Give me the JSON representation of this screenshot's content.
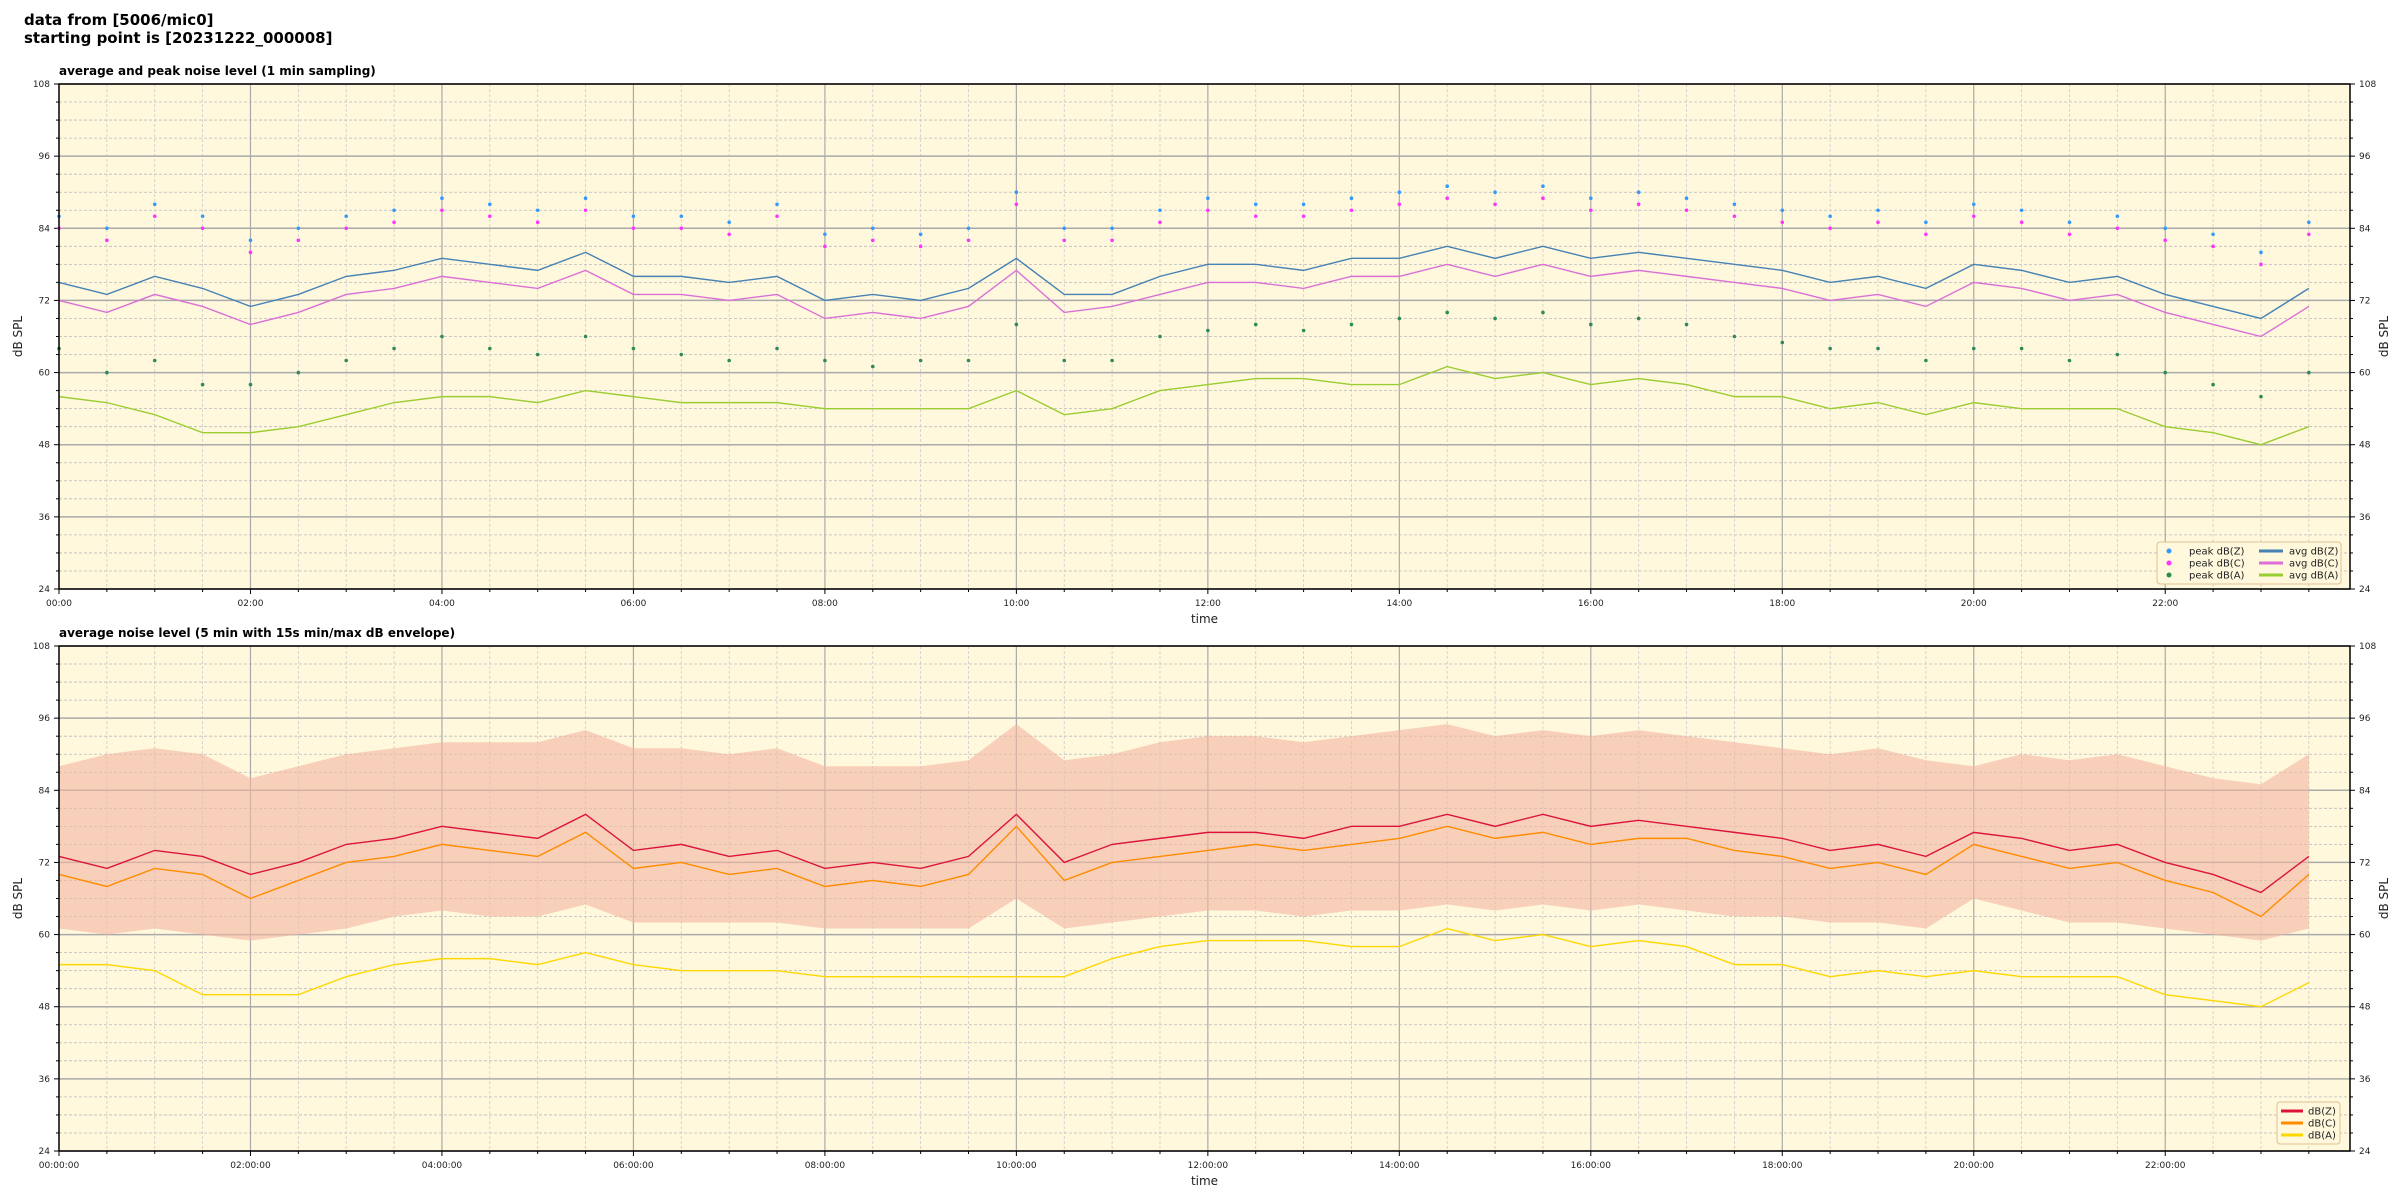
{
  "header": {
    "line1": "data from [5006/mic0]",
    "line2": "starting point is [20231222_000008]"
  },
  "chart_data": [
    {
      "type": "line",
      "title": "average and peak noise level (1 min sampling)",
      "xlabel": "time",
      "ylabel": "dB SPL",
      "xlim_hours": [
        0,
        23.93
      ],
      "ylim": [
        24,
        108
      ],
      "yticks": [
        "24",
        "36",
        "48",
        "60",
        "72",
        "84",
        "96",
        "108"
      ],
      "xticks": [
        "00:00",
        "02:00",
        "04:00",
        "06:00",
        "08:00",
        "10:00",
        "12:00",
        "14:00",
        "16:00",
        "18:00",
        "20:00",
        "22:00"
      ],
      "grid": true,
      "background": "#fff8dc",
      "legend_placement": "lower-right",
      "x_hours": [
        0,
        0.5,
        1,
        1.5,
        2,
        2.5,
        3,
        3.5,
        4,
        4.5,
        5,
        5.5,
        6,
        6.5,
        7,
        7.5,
        8,
        8.5,
        9,
        9.5,
        10,
        10.5,
        11,
        11.5,
        12,
        12.5,
        13,
        13.5,
        14,
        14.5,
        15,
        15.5,
        16,
        16.5,
        17,
        17.5,
        18,
        18.5,
        19,
        19.5,
        20,
        20.5,
        21,
        21.5,
        22,
        22.5,
        23,
        23.5
      ],
      "series": [
        {
          "name": "peak dB(Z)",
          "kind": "scatter",
          "color": "#3399ff",
          "values": [
            86,
            84,
            88,
            86,
            82,
            84,
            86,
            87,
            89,
            88,
            87,
            89,
            86,
            86,
            85,
            88,
            83,
            84,
            83,
            84,
            90,
            84,
            84,
            87,
            89,
            88,
            88,
            89,
            90,
            91,
            90,
            91,
            89,
            90,
            89,
            88,
            87,
            86,
            87,
            85,
            88,
            87,
            85,
            86,
            84,
            83,
            80,
            85
          ]
        },
        {
          "name": "peak dB(C)",
          "kind": "scatter",
          "color": "#ff33ff",
          "values": [
            84,
            82,
            86,
            84,
            80,
            82,
            84,
            85,
            87,
            86,
            85,
            87,
            84,
            84,
            83,
            86,
            81,
            82,
            81,
            82,
            88,
            82,
            82,
            85,
            87,
            86,
            86,
            87,
            88,
            89,
            88,
            89,
            87,
            88,
            87,
            86,
            85,
            84,
            85,
            83,
            86,
            85,
            83,
            84,
            82,
            81,
            78,
            83
          ]
        },
        {
          "name": "peak dB(A)",
          "kind": "scatter",
          "color": "#2e8b57",
          "values": [
            64,
            60,
            62,
            58,
            58,
            60,
            62,
            64,
            66,
            64,
            63,
            66,
            64,
            63,
            62,
            64,
            62,
            61,
            62,
            62,
            68,
            62,
            62,
            66,
            67,
            68,
            67,
            68,
            69,
            70,
            69,
            70,
            68,
            69,
            68,
            66,
            65,
            64,
            64,
            62,
            64,
            64,
            62,
            63,
            60,
            58,
            56,
            60
          ]
        },
        {
          "name": "avg dB(Z)",
          "kind": "line",
          "color": "#4682b4",
          "values": [
            75,
            73,
            76,
            74,
            71,
            73,
            76,
            77,
            79,
            78,
            77,
            80,
            76,
            76,
            75,
            76,
            72,
            73,
            72,
            74,
            79,
            73,
            73,
            76,
            78,
            78,
            77,
            79,
            79,
            81,
            79,
            81,
            79,
            80,
            79,
            78,
            77,
            75,
            76,
            74,
            78,
            77,
            75,
            76,
            73,
            71,
            69,
            74
          ]
        },
        {
          "name": "avg dB(C)",
          "kind": "line",
          "color": "#da70d6",
          "values": [
            72,
            70,
            73,
            71,
            68,
            70,
            73,
            74,
            76,
            75,
            74,
            77,
            73,
            73,
            72,
            73,
            69,
            70,
            69,
            71,
            77,
            70,
            71,
            73,
            75,
            75,
            74,
            76,
            76,
            78,
            76,
            78,
            76,
            77,
            76,
            75,
            74,
            72,
            73,
            71,
            75,
            74,
            72,
            73,
            70,
            68,
            66,
            71
          ]
        },
        {
          "name": "avg dB(A)",
          "kind": "line",
          "color": "#9acd32",
          "values": [
            56,
            55,
            53,
            50,
            50,
            51,
            53,
            55,
            56,
            56,
            55,
            57,
            56,
            55,
            55,
            55,
            54,
            54,
            54,
            54,
            57,
            53,
            54,
            57,
            58,
            59,
            59,
            58,
            58,
            61,
            59,
            60,
            58,
            59,
            58,
            56,
            56,
            54,
            55,
            53,
            55,
            54,
            54,
            54,
            51,
            50,
            48,
            51
          ]
        }
      ]
    },
    {
      "type": "line",
      "title": "average noise level (5 min with 15s min/max dB envelope)",
      "xlabel": "time",
      "ylabel": "dB SPL",
      "xlim_hours": [
        0,
        23.93
      ],
      "ylim": [
        24,
        108
      ],
      "yticks": [
        "24",
        "36",
        "48",
        "60",
        "72",
        "84",
        "96",
        "108"
      ],
      "xticks": [
        "00:00:00",
        "02:00:00",
        "04:00:00",
        "06:00:00",
        "08:00:00",
        "10:00:00",
        "12:00:00",
        "14:00:00",
        "16:00:00",
        "18:00:00",
        "20:00:00",
        "22:00:00"
      ],
      "grid": true,
      "background": "#fff8dc",
      "legend_placement": "lower-right",
      "x_hours": [
        0,
        0.5,
        1,
        1.5,
        2,
        2.5,
        3,
        3.5,
        4,
        4.5,
        5,
        5.5,
        6,
        6.5,
        7,
        7.5,
        8,
        8.5,
        9,
        9.5,
        10,
        10.5,
        11,
        11.5,
        12,
        12.5,
        13,
        13.5,
        14,
        14.5,
        15,
        15.5,
        16,
        16.5,
        17,
        17.5,
        18,
        18.5,
        19,
        19.5,
        20,
        20.5,
        21,
        21.5,
        22,
        22.5,
        23,
        23.5
      ],
      "envelope": {
        "color": "#f4b6a4",
        "min": [
          61,
          60,
          61,
          60,
          59,
          60,
          61,
          63,
          64,
          63,
          63,
          65,
          62,
          62,
          62,
          62,
          61,
          61,
          61,
          61,
          66,
          61,
          62,
          63,
          64,
          64,
          63,
          64,
          64,
          65,
          64,
          65,
          64,
          65,
          64,
          63,
          63,
          62,
          62,
          61,
          66,
          64,
          62,
          62,
          61,
          60,
          59,
          61
        ],
        "max": [
          88,
          90,
          91,
          90,
          86,
          88,
          90,
          91,
          92,
          92,
          92,
          94,
          91,
          91,
          90,
          91,
          88,
          88,
          88,
          89,
          95,
          89,
          90,
          92,
          93,
          93,
          92,
          93,
          94,
          95,
          93,
          94,
          93,
          94,
          93,
          92,
          91,
          90,
          91,
          89,
          88,
          90,
          89,
          90,
          88,
          86,
          85,
          90
        ]
      },
      "series": [
        {
          "name": "dB(Z)",
          "kind": "line",
          "color": "#dc143c",
          "values": [
            73,
            71,
            74,
            73,
            70,
            72,
            75,
            76,
            78,
            77,
            76,
            80,
            74,
            75,
            73,
            74,
            71,
            72,
            71,
            73,
            80,
            72,
            75,
            76,
            77,
            77,
            76,
            78,
            78,
            80,
            78,
            80,
            78,
            79,
            78,
            77,
            76,
            74,
            75,
            73,
            77,
            76,
            74,
            75,
            72,
            70,
            67,
            73
          ]
        },
        {
          "name": "dB(C)",
          "kind": "line",
          "color": "#ff8c00",
          "values": [
            70,
            68,
            71,
            70,
            66,
            69,
            72,
            73,
            75,
            74,
            73,
            77,
            71,
            72,
            70,
            71,
            68,
            69,
            68,
            70,
            78,
            69,
            72,
            73,
            74,
            75,
            74,
            75,
            76,
            78,
            76,
            77,
            75,
            76,
            76,
            74,
            73,
            71,
            72,
            70,
            75,
            73,
            71,
            72,
            69,
            67,
            63,
            70
          ]
        },
        {
          "name": "dB(A)",
          "kind": "line",
          "color": "#ffd700",
          "values": [
            55,
            55,
            54,
            50,
            50,
            50,
            53,
            55,
            56,
            56,
            55,
            57,
            55,
            54,
            54,
            54,
            53,
            53,
            53,
            53,
            53,
            53,
            56,
            58,
            59,
            59,
            59,
            58,
            58,
            61,
            59,
            60,
            58,
            59,
            58,
            55,
            55,
            53,
            54,
            53,
            54,
            53,
            53,
            53,
            50,
            49,
            48,
            52
          ]
        }
      ]
    }
  ]
}
